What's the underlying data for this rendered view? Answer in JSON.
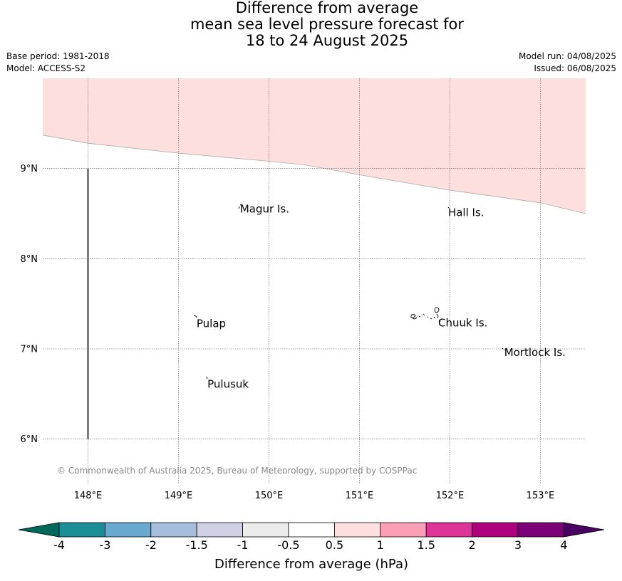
{
  "header": {
    "title_lines": [
      "Difference from average",
      "mean sea level pressure forecast for",
      "18 to 24 August 2025"
    ],
    "base_period": "Base period: 1981-2018",
    "model": "Model: ACCESS-S2",
    "model_run": "Model run: 04/08/2025",
    "issued": "Issued: 06/08/2025"
  },
  "map": {
    "lon_ticks": [
      "148°E",
      "149°E",
      "150°E",
      "151°E",
      "152°E",
      "153°E"
    ],
    "lat_ticks": [
      "9°N",
      "8°N",
      "7°N",
      "6°N"
    ],
    "lon_range": [
      147.5,
      153.5
    ],
    "lat_range": [
      5.5,
      10.0
    ],
    "gridlines": true,
    "copyright": "© Commonwealth of Australia 2025, Bureau of Meteorology, supported by COSPPac",
    "shaded_region": {
      "category": "0.5 to 1",
      "color": "#fde0dd",
      "boundary": [
        [
          147.5,
          9.37
        ],
        [
          148.0,
          9.28
        ],
        [
          149.0,
          9.17
        ],
        [
          150.0,
          9.08
        ],
        [
          150.4,
          9.04
        ],
        [
          151.0,
          8.93
        ],
        [
          152.0,
          8.76
        ],
        [
          153.0,
          8.62
        ],
        [
          153.5,
          8.5
        ]
      ]
    },
    "meridian_line": {
      "lon": 148.0,
      "lat_from": 6.0,
      "lat_to": 9.0
    },
    "labels": [
      {
        "name": "Magur Is.",
        "lon": 149.68,
        "lat": 8.55
      },
      {
        "name": "Hall Is.",
        "lon": 151.98,
        "lat": 8.51
      },
      {
        "name": "Pulap",
        "lon": 149.2,
        "lat": 7.28
      },
      {
        "name": "Chuuk Is.",
        "lon": 151.87,
        "lat": 7.29
      },
      {
        "name": "Mortlock Is.",
        "lon": 152.6,
        "lat": 6.96
      },
      {
        "name": "Pulusuk",
        "lon": 149.32,
        "lat": 6.61
      }
    ]
  },
  "colorbar": {
    "label": "Difference from average (hPa)",
    "tick_labels": [
      "-4",
      "-3",
      "-2",
      "-1.5",
      "-1",
      "-0.5",
      "0.5",
      "1",
      "1.5",
      "2",
      "3",
      "4"
    ],
    "min_extend_color": "#00695c",
    "max_extend_color": "#4a0062",
    "segments": [
      {
        "range": "-4 to -3",
        "color": "#1b8e98"
      },
      {
        "range": "-3 to -2",
        "color": "#67a9cf"
      },
      {
        "range": "-2 to -1.5",
        "color": "#a6bddb"
      },
      {
        "range": "-1.5 to -1",
        "color": "#d0d1e6"
      },
      {
        "range": "-1 to -0.5",
        "color": "#ececec"
      },
      {
        "range": "-0.5 to 0.5",
        "color": "#ffffff"
      },
      {
        "range": "0.5 to 1",
        "color": "#fde0dd"
      },
      {
        "range": "1 to 1.5",
        "color": "#fa9fb5"
      },
      {
        "range": "1.5 to 2",
        "color": "#dd3497"
      },
      {
        "range": "2 to 3",
        "color": "#ae017e"
      },
      {
        "range": "3 to 4",
        "color": "#7a0177"
      }
    ]
  }
}
